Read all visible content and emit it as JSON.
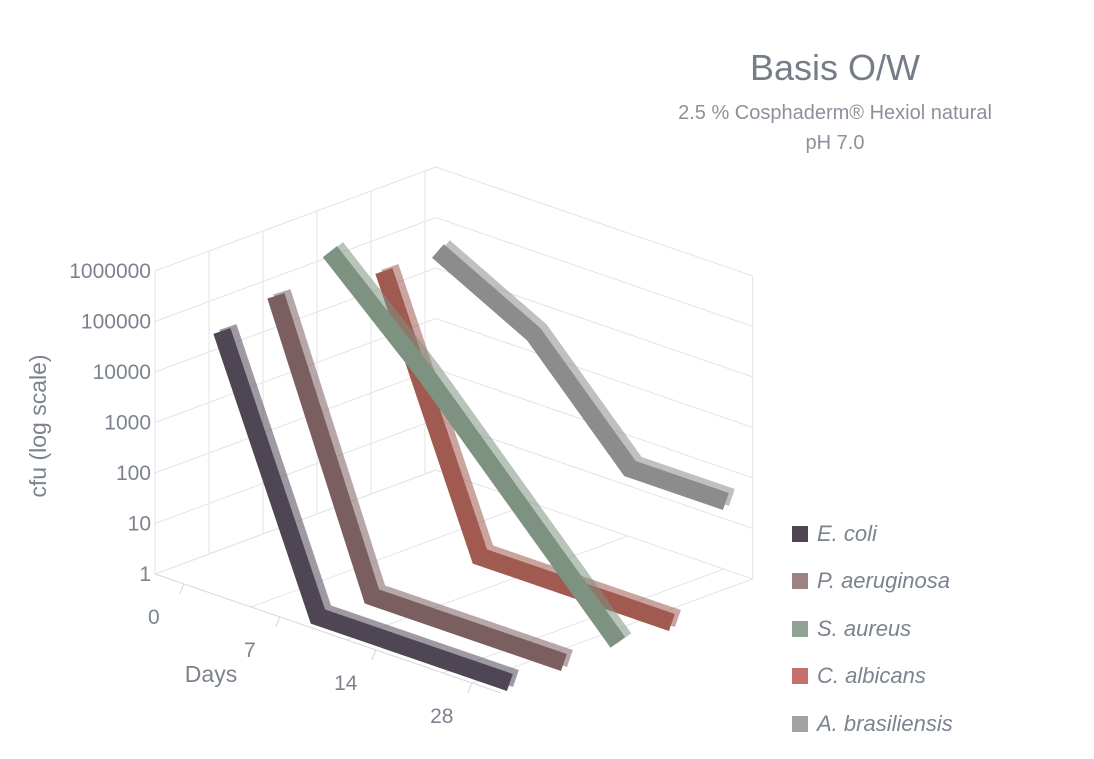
{
  "chart_data": {
    "type": "line",
    "title": "Basis O/W",
    "subtitle_lines": [
      "2.5 % Cosphaderm® Hexiol natural",
      "pH 7.0"
    ],
    "xlabel": "Days",
    "ylabel": "cfu (log scale)",
    "y_scale": "log",
    "ylim": [
      1,
      1000000
    ],
    "y_ticks": [
      "1",
      "10",
      "100",
      "1000",
      "10000",
      "100000",
      "1000000"
    ],
    "categories": [
      "0",
      "7",
      "14",
      "28"
    ],
    "legend_position": "right",
    "series": [
      {
        "name": "E. coli",
        "color": "#4e4655",
        "values": [
          100000,
          1,
          1,
          1
        ]
      },
      {
        "name": "P. aeruginosa",
        "color": "#7b5f60",
        "values": [
          200000,
          1,
          1,
          1
        ]
      },
      {
        "name": "S. aureus",
        "color": "#7d9281",
        "values": [
          600000,
          10000,
          100,
          1
        ]
      },
      {
        "name": "C. albicans",
        "color": "#a15a50",
        "values": [
          100000,
          1,
          1,
          1
        ]
      },
      {
        "name": "A. brasiliensis",
        "color": "#8c8c8c",
        "values": [
          100000,
          10000,
          100,
          100
        ]
      }
    ]
  },
  "legend_swatch_colors": [
    "#4e4655",
    "#9e8283",
    "#8fa594",
    "#c46f69",
    "#a3a3a3"
  ]
}
